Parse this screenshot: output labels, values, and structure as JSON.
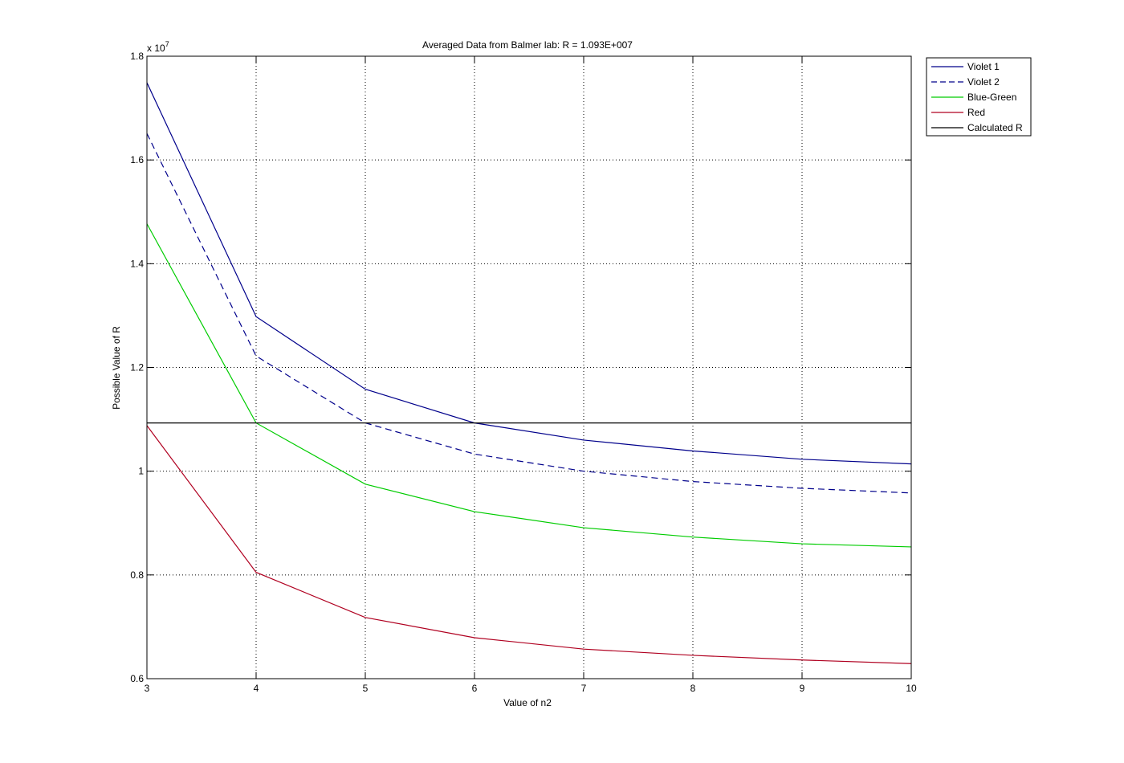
{
  "chart_data": {
    "type": "line",
    "title": "Averaged Data from Balmer lab: R = 1.093E+007",
    "xlabel": "Value of n2",
    "ylabel": "Possible Value of R",
    "y_multiplier_label": "x 10",
    "y_multiplier_exponent": "7",
    "xlim": [
      3,
      10
    ],
    "ylim": [
      0.6,
      1.8
    ],
    "y_scale": 10000000,
    "grid": true,
    "legend_position": "outside-top-right",
    "x": [
      3,
      4,
      5,
      6,
      7,
      8,
      9,
      10
    ],
    "xticks": [
      "3",
      "4",
      "5",
      "6",
      "7",
      "8",
      "9",
      "10"
    ],
    "yticks": [
      "0.6",
      "0.8",
      "1",
      "1.2",
      "1.4",
      "1.6",
      "1.8"
    ],
    "ytick_values": [
      0.6,
      0.8,
      1.0,
      1.2,
      1.4,
      1.6,
      1.8
    ],
    "series": [
      {
        "name": "Violet 1",
        "color": "#00008b",
        "dash": "solid",
        "values": [
          1.749,
          1.298,
          1.158,
          1.093,
          1.06,
          1.039,
          1.023,
          1.014
        ]
      },
      {
        "name": "Violet 2",
        "color": "#00008b",
        "dash": "dashed",
        "values": [
          1.651,
          1.222,
          1.093,
          1.033,
          1.0,
          0.98,
          0.967,
          0.958
        ]
      },
      {
        "name": "Blue-Green",
        "color": "#00cc00",
        "dash": "solid",
        "values": [
          1.477,
          1.093,
          0.975,
          0.922,
          0.891,
          0.873,
          0.86,
          0.854
        ]
      },
      {
        "name": "Red",
        "color": "#b00020",
        "dash": "solid",
        "values": [
          1.088,
          0.805,
          0.718,
          0.679,
          0.657,
          0.645,
          0.636,
          0.629
        ]
      },
      {
        "name": "Calculated R",
        "color": "#000000",
        "dash": "solid",
        "values": [
          1.093,
          1.093,
          1.093,
          1.093,
          1.093,
          1.093,
          1.093,
          1.093
        ]
      }
    ]
  }
}
